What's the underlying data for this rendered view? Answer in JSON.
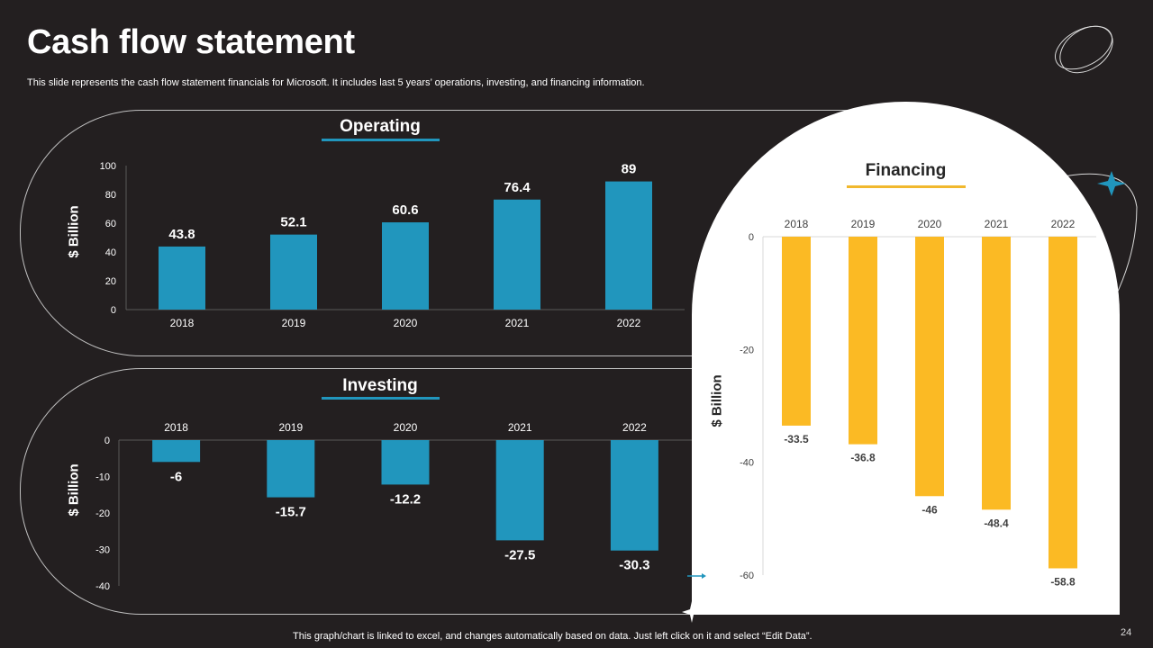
{
  "page": {
    "title": "Cash flow statement",
    "subtitle": "This slide represents the cash flow statement financials for Microsoft. It includes last 5 years’ operations, investing, and financing information.",
    "footer": "This graph/chart is linked to excel,  and changes automatically based on data. Just left click on it and select “Edit Data”.",
    "page_number": "24"
  },
  "colors": {
    "background": "#231f20",
    "operating_bar": "#2196bd",
    "investing_bar": "#2196bd",
    "financing_bar": "#fbba24",
    "operating_underline": "#2196bd",
    "financing_underline": "#f1b82d"
  },
  "chart_data": [
    {
      "type": "bar",
      "title": "Operating",
      "ylabel": "$ Billion",
      "xlabel": "",
      "categories": [
        "2018",
        "2019",
        "2020",
        "2021",
        "2022"
      ],
      "values": [
        43.8,
        52.1,
        60.6,
        76.4,
        89
      ],
      "ylim": [
        0,
        100
      ],
      "yticks": [
        0,
        20,
        40,
        60,
        80,
        100
      ]
    },
    {
      "type": "bar",
      "title": "Investing",
      "ylabel": "$ Billion",
      "xlabel": "",
      "categories": [
        "2018",
        "2019",
        "2020",
        "2021",
        "2022"
      ],
      "values": [
        -6,
        -15.7,
        -12.2,
        -27.5,
        -30.3
      ],
      "ylim": [
        -40,
        0
      ],
      "yticks": [
        0,
        -10,
        -20,
        -30,
        -40
      ]
    },
    {
      "type": "bar",
      "title": "Financing",
      "ylabel": "$ Billion",
      "xlabel": "",
      "categories": [
        "2018",
        "2019",
        "2020",
        "2021",
        "2022"
      ],
      "values": [
        -33.5,
        -36.8,
        -46,
        -48.4,
        -58.8
      ],
      "ylim": [
        -60,
        0
      ],
      "yticks": [
        0,
        -20,
        -40,
        -60
      ]
    }
  ]
}
